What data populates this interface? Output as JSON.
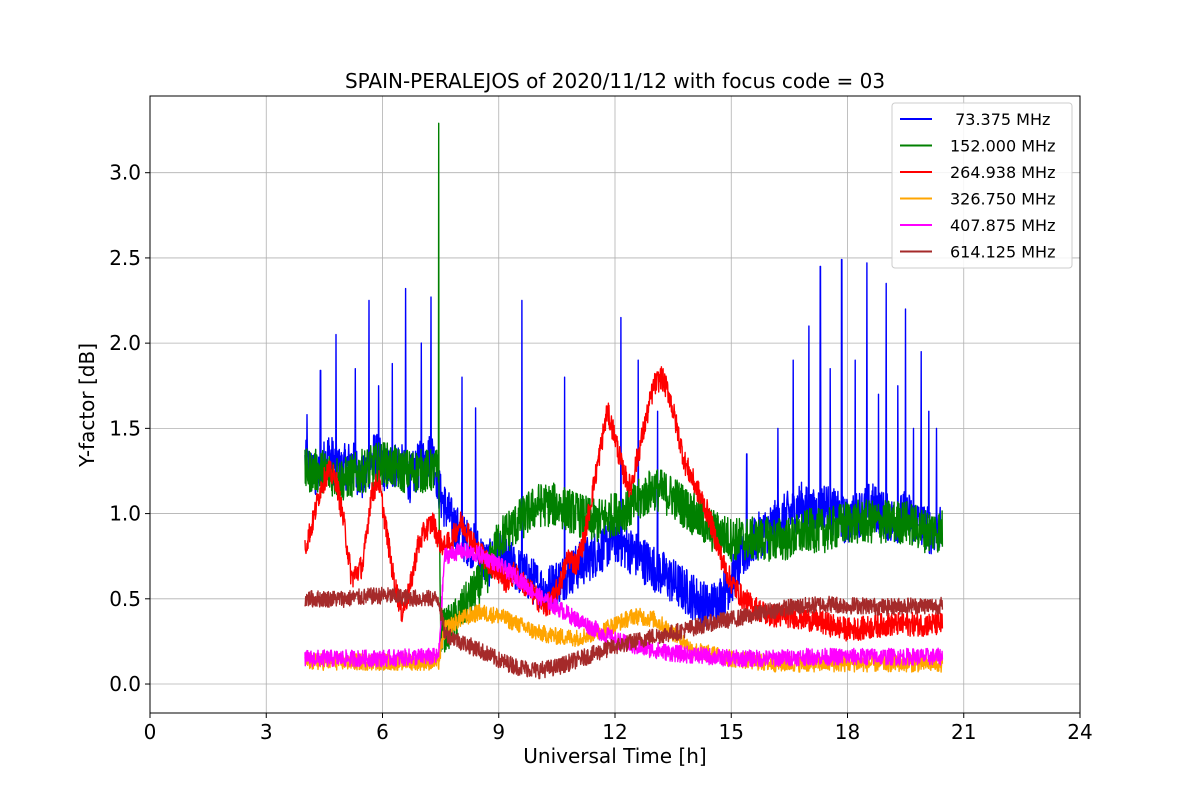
{
  "chart_data": {
    "type": "line",
    "title": "SPAIN-PERALEJOS of 2020/11/12 with focus code = 03",
    "xlabel": "Universal Time [h]",
    "ylabel": "Y-factor [dB]",
    "xlim": [
      0,
      24
    ],
    "ylim": [
      -0.17,
      3.45
    ],
    "xticks": [
      0,
      3,
      6,
      9,
      12,
      15,
      18,
      21,
      24
    ],
    "xtick_labels": [
      "0",
      "3",
      "6",
      "9",
      "12",
      "15",
      "18",
      "21",
      "24"
    ],
    "yticks": [
      0.0,
      0.5,
      1.0,
      1.5,
      2.0,
      2.5,
      3.0
    ],
    "ytick_labels": [
      "0.0",
      "0.5",
      "1.0",
      "1.5",
      "2.0",
      "2.5",
      "3.0"
    ],
    "grid": true,
    "legend_position": "top-right",
    "series": [
      {
        "name": " 73.375 MHz",
        "color": "#0000ff",
        "x": [
          4.0,
          4.3,
          4.6,
          4.9,
          5.2,
          5.5,
          5.8,
          6.1,
          6.4,
          6.7,
          7.0,
          7.3,
          7.5,
          7.8,
          8.1,
          8.4,
          8.7,
          9.0,
          9.3,
          9.6,
          9.9,
          10.2,
          10.5,
          10.8,
          11.1,
          11.4,
          11.7,
          12.0,
          12.3,
          12.6,
          12.9,
          13.2,
          13.5,
          13.8,
          14.1,
          14.4,
          14.7,
          15.0,
          15.3,
          15.6,
          15.9,
          16.2,
          16.5,
          16.8,
          17.1,
          17.4,
          17.7,
          18.0,
          18.3,
          18.6,
          18.9,
          19.2,
          19.5,
          19.8,
          20.1,
          20.4
        ],
        "y": [
          1.3,
          1.2,
          1.35,
          1.25,
          1.3,
          1.2,
          1.35,
          1.25,
          1.3,
          1.2,
          1.3,
          1.35,
          1.1,
          0.95,
          0.85,
          0.8,
          0.7,
          0.75,
          0.7,
          0.65,
          0.6,
          0.55,
          0.6,
          0.65,
          0.7,
          0.75,
          0.8,
          0.85,
          0.8,
          0.75,
          0.7,
          0.65,
          0.6,
          0.55,
          0.5,
          0.45,
          0.5,
          0.6,
          0.75,
          0.85,
          0.9,
          0.95,
          1.0,
          1.05,
          1.0,
          1.05,
          1.0,
          0.95,
          1.0,
          1.05,
          1.0,
          0.95,
          1.0,
          0.95,
          0.9,
          0.9
        ],
        "noise": 0.14,
        "spikes": [
          [
            4.05,
            1.58
          ],
          [
            4.4,
            1.84
          ],
          [
            4.8,
            2.05
          ],
          [
            5.3,
            1.85
          ],
          [
            5.65,
            2.25
          ],
          [
            5.9,
            1.75
          ],
          [
            6.25,
            1.88
          ],
          [
            6.6,
            2.32
          ],
          [
            7.0,
            2.0
          ],
          [
            7.25,
            2.27
          ],
          [
            8.05,
            1.8
          ],
          [
            8.4,
            1.62
          ],
          [
            9.6,
            2.25
          ],
          [
            10.7,
            1.8
          ],
          [
            12.15,
            2.15
          ],
          [
            12.6,
            1.9
          ],
          [
            13.1,
            1.6
          ],
          [
            15.4,
            1.35
          ],
          [
            16.2,
            1.5
          ],
          [
            16.6,
            1.9
          ],
          [
            17.0,
            2.1
          ],
          [
            17.3,
            2.45
          ],
          [
            17.55,
            1.85
          ],
          [
            17.85,
            2.49
          ],
          [
            18.2,
            1.9
          ],
          [
            18.5,
            2.47
          ],
          [
            18.8,
            1.7
          ],
          [
            19.0,
            2.35
          ],
          [
            19.3,
            1.75
          ],
          [
            19.5,
            2.2
          ],
          [
            19.7,
            1.5
          ],
          [
            19.9,
            1.95
          ],
          [
            20.1,
            1.6
          ],
          [
            20.3,
            1.5
          ]
        ]
      },
      {
        "name": "152.000 MHz",
        "color": "#008000",
        "x": [
          4.0,
          4.5,
          5.0,
          5.5,
          6.0,
          6.5,
          7.0,
          7.45,
          7.5,
          7.8,
          8.1,
          8.4,
          8.7,
          9.0,
          9.5,
          10.0,
          10.5,
          11.0,
          11.5,
          12.0,
          12.5,
          13.0,
          13.5,
          14.0,
          14.5,
          15.0,
          15.5,
          16.0,
          16.5,
          17.0,
          17.5,
          18.0,
          18.5,
          19.0,
          19.5,
          20.0,
          20.45
        ],
        "y": [
          1.25,
          1.25,
          1.2,
          1.25,
          1.3,
          1.25,
          1.25,
          1.25,
          0.3,
          0.35,
          0.45,
          0.55,
          0.65,
          0.85,
          0.95,
          1.05,
          1.05,
          1.0,
          0.95,
          1.0,
          1.05,
          1.15,
          1.1,
          1.0,
          0.9,
          0.85,
          0.85,
          0.85,
          0.85,
          0.9,
          0.9,
          0.95,
          0.95,
          0.95,
          0.95,
          0.9,
          0.9
        ],
        "noise": 0.13,
        "spikes": [
          [
            7.45,
            3.29
          ]
        ]
      },
      {
        "name": "264.938 MHz",
        "color": "#ff0000",
        "x": [
          4.0,
          4.2,
          4.4,
          4.6,
          4.8,
          5.0,
          5.2,
          5.5,
          5.7,
          5.9,
          6.1,
          6.3,
          6.5,
          6.7,
          6.9,
          7.1,
          7.3,
          7.45,
          7.6,
          7.8,
          8.0,
          8.2,
          8.4,
          8.6,
          8.8,
          9.0,
          9.2,
          9.4,
          9.6,
          9.8,
          10.0,
          10.2,
          10.4,
          10.6,
          10.8,
          11.0,
          11.2,
          11.4,
          11.6,
          11.8,
          12.0,
          12.2,
          12.4,
          12.6,
          12.8,
          13.0,
          13.2,
          13.4,
          13.6,
          13.8,
          14.0,
          14.2,
          14.4,
          14.6,
          14.8,
          15.0,
          15.3,
          15.6,
          16.0,
          16.5,
          17.0,
          17.5,
          18.0,
          18.5,
          19.0,
          19.5,
          20.0,
          20.45
        ],
        "y": [
          0.8,
          0.95,
          1.15,
          1.25,
          1.2,
          0.95,
          0.62,
          0.7,
          1.1,
          1.2,
          0.9,
          0.6,
          0.42,
          0.55,
          0.8,
          0.9,
          0.95,
          0.85,
          0.8,
          0.85,
          0.95,
          0.9,
          0.8,
          0.75,
          0.7,
          0.65,
          0.6,
          0.65,
          0.6,
          0.55,
          0.5,
          0.45,
          0.5,
          0.6,
          0.75,
          0.7,
          0.85,
          1.1,
          1.35,
          1.6,
          1.45,
          1.25,
          1.15,
          1.35,
          1.55,
          1.75,
          1.8,
          1.7,
          1.5,
          1.3,
          1.2,
          1.1,
          1.0,
          0.85,
          0.7,
          0.6,
          0.5,
          0.45,
          0.4,
          0.4,
          0.38,
          0.35,
          0.32,
          0.33,
          0.35,
          0.35,
          0.35,
          0.35
        ],
        "noise": 0.07,
        "spikes": []
      },
      {
        "name": "326.750 MHz",
        "color": "#ffa500",
        "x": [
          4.0,
          5.0,
          6.0,
          7.0,
          7.45,
          7.6,
          8.0,
          8.5,
          9.0,
          9.5,
          10.0,
          10.5,
          11.0,
          11.5,
          12.0,
          12.5,
          13.0,
          13.5,
          14.0,
          15.0,
          16.0,
          17.0,
          18.0,
          19.0,
          20.0,
          20.45
        ],
        "y": [
          0.13,
          0.13,
          0.13,
          0.13,
          0.13,
          0.32,
          0.38,
          0.42,
          0.4,
          0.35,
          0.3,
          0.28,
          0.27,
          0.3,
          0.35,
          0.4,
          0.38,
          0.3,
          0.2,
          0.15,
          0.12,
          0.12,
          0.12,
          0.12,
          0.12,
          0.12
        ],
        "noise": 0.05,
        "spikes": []
      },
      {
        "name": "407.875 MHz",
        "color": "#ff00ff",
        "x": [
          4.0,
          5.0,
          6.0,
          7.0,
          7.45,
          7.6,
          8.0,
          8.5,
          9.0,
          9.5,
          10.0,
          10.5,
          11.0,
          11.5,
          12.0,
          12.5,
          13.0,
          13.5,
          14.0,
          15.0,
          16.0,
          17.0,
          18.0,
          19.0,
          20.0,
          20.45
        ],
        "y": [
          0.15,
          0.15,
          0.15,
          0.16,
          0.16,
          0.75,
          0.78,
          0.76,
          0.7,
          0.62,
          0.52,
          0.45,
          0.38,
          0.32,
          0.26,
          0.22,
          0.2,
          0.18,
          0.17,
          0.15,
          0.15,
          0.16,
          0.16,
          0.16,
          0.16,
          0.16
        ],
        "noise": 0.05,
        "spikes": []
      },
      {
        "name": "614.125 MHz",
        "color": "#a52a2a",
        "x": [
          4.0,
          5.0,
          6.0,
          7.0,
          7.45,
          7.6,
          8.0,
          8.5,
          9.0,
          9.5,
          10.0,
          10.5,
          11.0,
          11.5,
          12.0,
          12.5,
          13.0,
          13.5,
          14.0,
          14.5,
          15.0,
          15.5,
          16.0,
          16.5,
          17.0,
          17.5,
          18.0,
          18.5,
          19.0,
          19.5,
          20.0,
          20.45
        ],
        "y": [
          0.5,
          0.5,
          0.52,
          0.5,
          0.5,
          0.3,
          0.25,
          0.2,
          0.14,
          0.1,
          0.08,
          0.1,
          0.14,
          0.18,
          0.22,
          0.25,
          0.28,
          0.3,
          0.33,
          0.36,
          0.38,
          0.4,
          0.43,
          0.45,
          0.46,
          0.47,
          0.46,
          0.46,
          0.45,
          0.46,
          0.46,
          0.46
        ],
        "noise": 0.05,
        "spikes": []
      }
    ]
  }
}
